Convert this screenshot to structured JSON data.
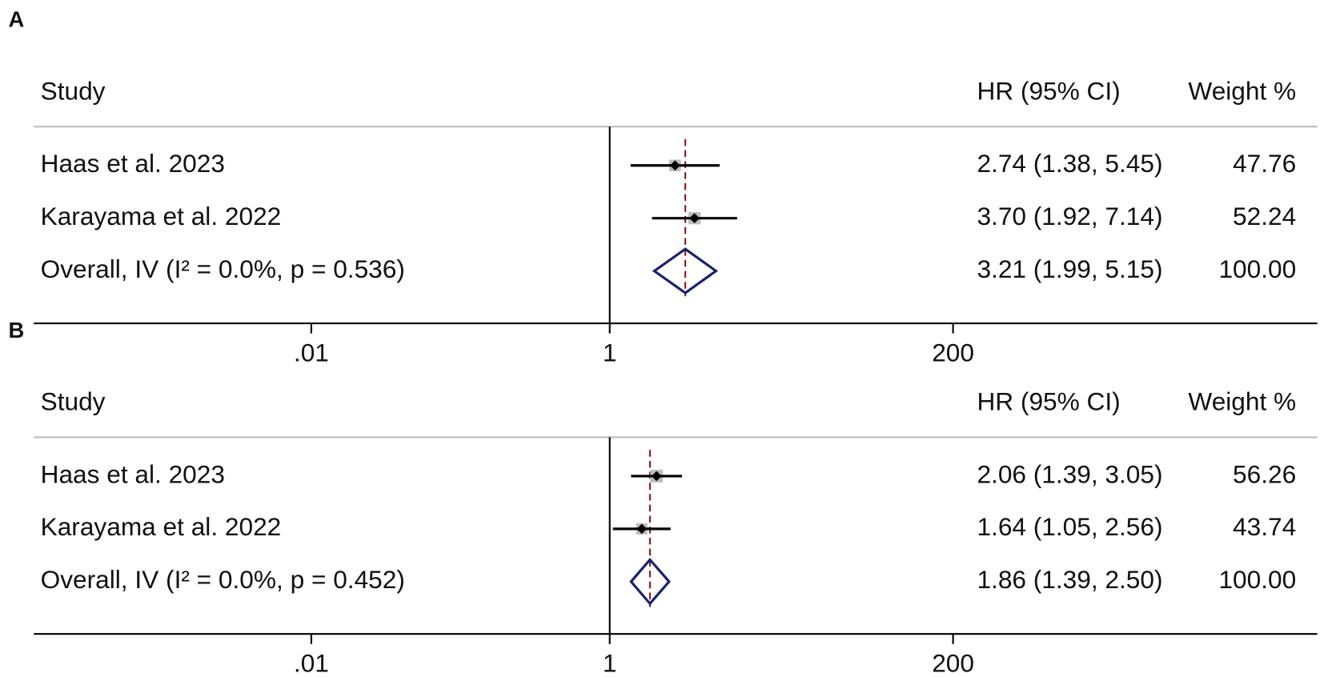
{
  "chart_data": [
    {
      "type": "forest",
      "title": "A",
      "columns": {
        "study": "Study",
        "estimate": "HR (95% CI)",
        "weight": "Weight %"
      },
      "categories": [
        "Haas et al. 2023",
        "Karayama et al. 2022"
      ],
      "values": [
        2.74,
        3.7
      ],
      "lower": [
        1.38,
        1.92
      ],
      "upper": [
        5.45,
        7.14
      ],
      "value_labels": [
        "2.74 (1.38, 5.45)",
        "3.70 (1.92, 7.14)"
      ],
      "weights": [
        47.76,
        52.24
      ],
      "overall": {
        "label": "Overall, IV (I² = 0.0%, p = 0.536)",
        "value": 3.21,
        "lower": 1.99,
        "upper": 5.15,
        "value_label": "3.21 (1.99, 5.15)",
        "weight": {
          "value": 100,
          "label": "100.00"
        }
      },
      "null_line": 1,
      "log_x": true,
      "xlim": [
        0.000138,
        55200
      ],
      "xticks": [
        {
          "value": 0.01,
          "label": ".01"
        },
        1,
        200
      ],
      "box_color": "#bdbdbd",
      "point_color": "#000000",
      "diamond_color": "#1a1f6b",
      "reference_color": "#8b1a1a"
    },
    {
      "type": "forest",
      "title": "B",
      "columns": {
        "study": "Study",
        "estimate": "HR (95% CI)",
        "weight": "Weight %"
      },
      "categories": [
        "Haas et al. 2023",
        "Karayama et al. 2022"
      ],
      "values": [
        2.06,
        1.64
      ],
      "lower": [
        1.39,
        1.05
      ],
      "upper": [
        3.05,
        2.56
      ],
      "value_labels": [
        "2.06 (1.39, 3.05)",
        "1.64 (1.05, 2.56)"
      ],
      "weights": [
        56.26,
        43.74
      ],
      "overall": {
        "label": "Overall, IV (I² = 0.0%, p = 0.452)",
        "value": 1.86,
        "lower": 1.39,
        "upper": 2.5,
        "value_label": "1.86 (1.39, 2.50)",
        "weight": {
          "value": 100,
          "label": "100.00"
        }
      },
      "null_line": 1,
      "log_x": true,
      "xlim": [
        0.000138,
        55200
      ],
      "xticks": [
        {
          "value": 0.01,
          "label": ".01"
        },
        1,
        200
      ],
      "box_color": "#bdbdbd",
      "point_color": "#000000",
      "diamond_color": "#1a1f6b",
      "reference_color": "#8b1a1a"
    }
  ]
}
